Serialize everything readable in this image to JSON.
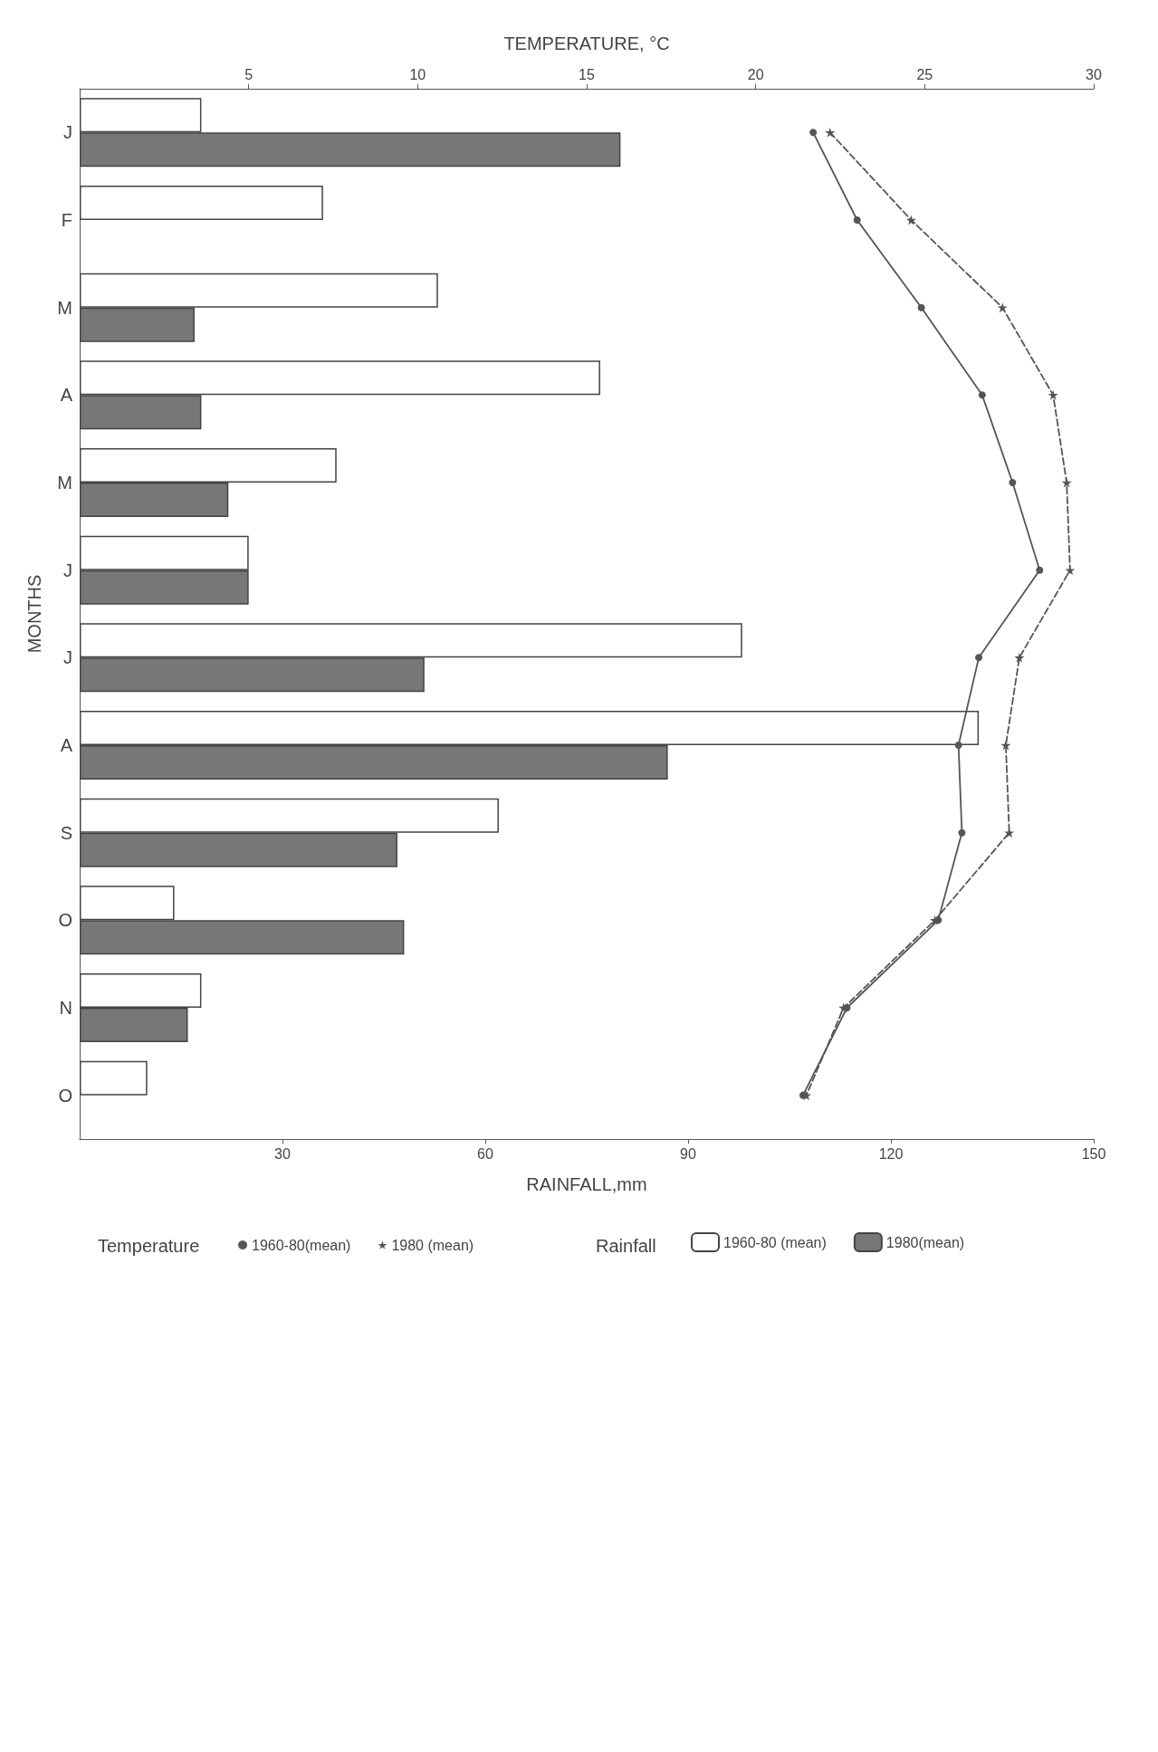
{
  "chart_data": {
    "type": "bar",
    "orientation": "horizontal",
    "categories": [
      "J",
      "F",
      "M",
      "A",
      "M",
      "J",
      "J",
      "A",
      "S",
      "O",
      "N",
      "O"
    ],
    "xlabel": "RAINFALL,mm",
    "x2label": "TEMPERATURE, °C",
    "ylabel": "MONTHS",
    "xlim": [
      0,
      150
    ],
    "xticks": [
      30,
      60,
      90,
      120,
      150
    ],
    "x2lim": [
      0,
      30
    ],
    "x2ticks": [
      5,
      10,
      15,
      20,
      25,
      30
    ],
    "series": [
      {
        "name": "1960-80 (mean)",
        "color": "#ffffff",
        "values": [
          18,
          36,
          53,
          77,
          38,
          25,
          98,
          133,
          62,
          14,
          18,
          10
        ]
      },
      {
        "name": "1980(mean)",
        "color": "#777777",
        "values": [
          80,
          null,
          17,
          18,
          22,
          25,
          51,
          87,
          47,
          48,
          16,
          null
        ]
      },
      {
        "name": "1960-80(mean)",
        "type": "line",
        "axis": "x2",
        "color": "#555555",
        "marker": "circle",
        "line_style": "solid",
        "values": [
          21.7,
          23,
          24.9,
          26.7,
          27.6,
          28.4,
          26.6,
          26,
          26.1,
          25.4,
          22.7,
          21.4
        ]
      },
      {
        "name": "1980 (mean)",
        "type": "line",
        "axis": "x2",
        "color": "#555555",
        "marker": "star",
        "line_style": "dashed",
        "values": [
          22.2,
          24.6,
          27.3,
          28.8,
          29.2,
          29.3,
          27.8,
          27.4,
          27.5,
          25.3,
          22.6,
          21.5
        ]
      }
    ],
    "annotations": [
      "Temperature",
      "Rainfall"
    ],
    "grid": false,
    "legend": "bottom"
  }
}
